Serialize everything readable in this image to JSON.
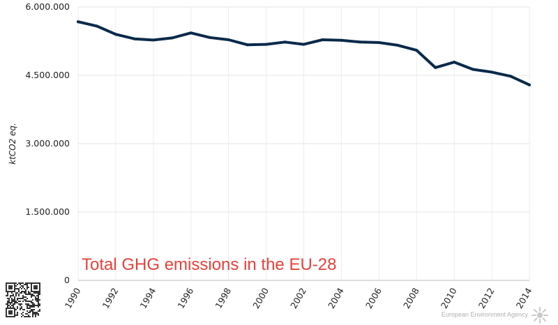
{
  "chart_data": {
    "type": "line",
    "title": "",
    "xlabel": "",
    "ylabel": "ktCO2 eq.",
    "ylim": [
      0,
      6000000
    ],
    "xlim": [
      1990,
      2014
    ],
    "grid": true,
    "y_ticks": [
      0,
      1500000,
      3000000,
      4500000,
      6000000
    ],
    "y_tick_labels": [
      "0",
      "1.500.000",
      "3.000.000",
      "4.500.000",
      "6.000.000"
    ],
    "x_ticks": [
      1990,
      1992,
      1994,
      1996,
      1998,
      2000,
      2002,
      2004,
      2006,
      2008,
      2010,
      2012,
      2014
    ],
    "x_tick_labels": [
      "1990",
      "1992",
      "1994",
      "1996",
      "1998",
      "2000",
      "2002",
      "2004",
      "2006",
      "2008",
      "2010",
      "2012",
      "2014"
    ],
    "series": [
      {
        "color": "#0b2a4a",
        "x": [
          1990,
          1991,
          1992,
          1993,
          1994,
          1995,
          1996,
          1997,
          1998,
          1999,
          2000,
          2001,
          2002,
          2003,
          2004,
          2005,
          2006,
          2007,
          2008,
          2009,
          2010,
          2011,
          2012,
          2013,
          2014
        ],
        "values": [
          5675000,
          5580000,
          5400000,
          5300000,
          5275000,
          5320000,
          5430000,
          5330000,
          5280000,
          5170000,
          5180000,
          5230000,
          5180000,
          5280000,
          5270000,
          5230000,
          5220000,
          5160000,
          5050000,
          4670000,
          4790000,
          4630000,
          4570000,
          4480000,
          4290000
        ]
      }
    ],
    "annotation": {
      "text": "Total GHG emissions in the EU-28",
      "color": "#e5413b"
    }
  },
  "credit": {
    "text": "European Environment Agency"
  }
}
